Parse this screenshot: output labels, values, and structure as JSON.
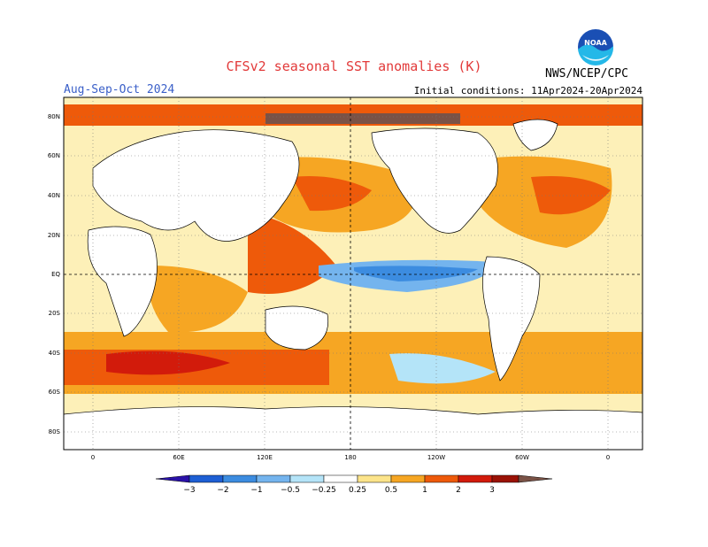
{
  "header": {
    "title": "CFSv2 seasonal SST anomalies (K)",
    "season": "Aug-Sep-Oct 2024",
    "initial_conditions": "Initial conditions: 11Apr2024-20Apr2024",
    "org": "NWS/NCEP/CPC",
    "logo_icon": "noaa-logo-icon",
    "logo_text": "NOAA"
  },
  "map": {
    "lat_labels": [
      "80N",
      "60N",
      "40N",
      "20N",
      "EQ",
      "20S",
      "40S",
      "60S",
      "80S"
    ],
    "lon_labels": [
      "0",
      "60E",
      "120E",
      "180",
      "120W",
      "60W",
      "0"
    ]
  },
  "colorbar": {
    "labels": [
      "−3",
      "−2",
      "−1",
      "−0.5",
      "−0.25",
      "0.25",
      "0.5",
      "1",
      "2",
      "3"
    ],
    "colors": [
      "#2a12a8",
      "#1e5fd4",
      "#3c8ce0",
      "#74b4ee",
      "#b4e4f8",
      "#ffffff",
      "#fce48a",
      "#f6a623",
      "#ee5a0a",
      "#d21b0b",
      "#9a1206",
      "#7a5246"
    ]
  }
}
